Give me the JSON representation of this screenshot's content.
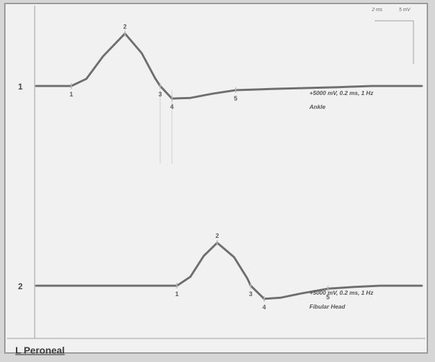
{
  "chart_data": {
    "type": "line",
    "title": "",
    "nerve_label": "L Peroneal",
    "scale_labels": [
      "2 ms",
      "5 mV"
    ],
    "traces": [
      {
        "number": "1",
        "setting": "+5000 mV, 0.2 ms, 1 Hz",
        "site": "Ankle",
        "markers": [
          {
            "label": "1",
            "t": 2.1
          },
          {
            "label": "2",
            "t": 5.3
          },
          {
            "label": "3",
            "t": 7.4
          },
          {
            "label": "4",
            "t": 8.1
          },
          {
            "label": "5",
            "t": 11.9
          }
        ],
        "points": [
          [
            0,
            0
          ],
          [
            2.1,
            0
          ],
          [
            3.0,
            1.2
          ],
          [
            4.0,
            5.0
          ],
          [
            5.3,
            8.8
          ],
          [
            6.3,
            5.5
          ],
          [
            7.1,
            1.3
          ],
          [
            7.4,
            0
          ],
          [
            8.1,
            -2.1
          ],
          [
            9.2,
            -2.0
          ],
          [
            10.5,
            -1.3
          ],
          [
            11.9,
            -0.7
          ],
          [
            14,
            -0.5
          ],
          [
            18,
            -0.2
          ],
          [
            20,
            0
          ],
          [
            23,
            0
          ]
        ]
      },
      {
        "number": "2",
        "setting": "+5000 mV, 0.2 ms, 1 Hz",
        "site": "Fibular Head",
        "markers": [
          {
            "label": "1",
            "t": 8.4
          },
          {
            "label": "2",
            "t": 10.8
          },
          {
            "label": "3",
            "t": 12.8
          },
          {
            "label": "4",
            "t": 13.6
          },
          {
            "label": "5",
            "t": 17.4
          }
        ],
        "points": [
          [
            0,
            0
          ],
          [
            8.4,
            0
          ],
          [
            9.2,
            1.5
          ],
          [
            10.0,
            5.0
          ],
          [
            10.8,
            7.2
          ],
          [
            11.8,
            4.8
          ],
          [
            12.6,
            1.2
          ],
          [
            12.8,
            0
          ],
          [
            13.6,
            -2.2
          ],
          [
            14.6,
            -2.0
          ],
          [
            15.8,
            -1.3
          ],
          [
            17.4,
            -0.5
          ],
          [
            19,
            -0.2
          ],
          [
            20.5,
            0
          ],
          [
            23,
            0
          ]
        ]
      }
    ],
    "x_range": [
      0,
      23
    ],
    "y_range_per_trace": [
      -3,
      10
    ],
    "grid": false
  }
}
